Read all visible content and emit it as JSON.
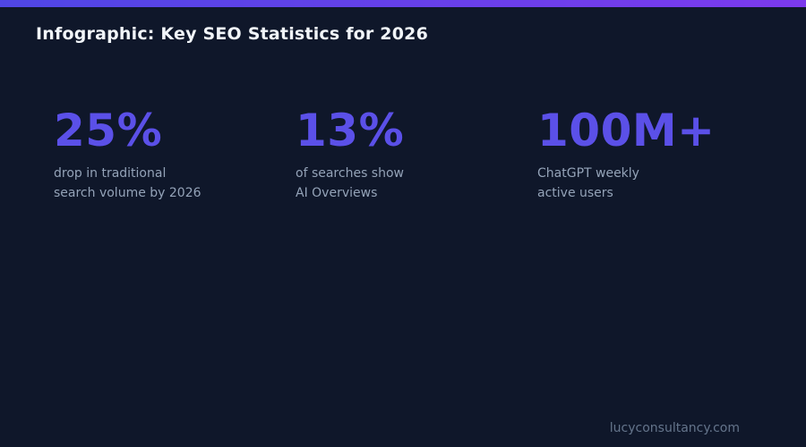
{
  "page": {
    "title": "Infographic: Key SEO Statistics for 2026",
    "footer": "lucyconsultancy.com"
  },
  "colors": {
    "background": "#0f172a",
    "accent_bar_start": "#4f46e5",
    "accent_bar_end": "#7c3aed",
    "title_text": "#f1f5f9",
    "stat_number": "#5b50e8",
    "stat_label": "#94a3b8",
    "footer_text": "#64748b"
  },
  "stats": [
    {
      "value": "25%",
      "label_line1": "drop in traditional",
      "label_line2": "search volume by 2026"
    },
    {
      "value": "13%",
      "label_line1": "of searches show",
      "label_line2": "AI Overviews"
    },
    {
      "value": "100M+",
      "label_line1": "ChatGPT weekly",
      "label_line2": "active users"
    }
  ]
}
